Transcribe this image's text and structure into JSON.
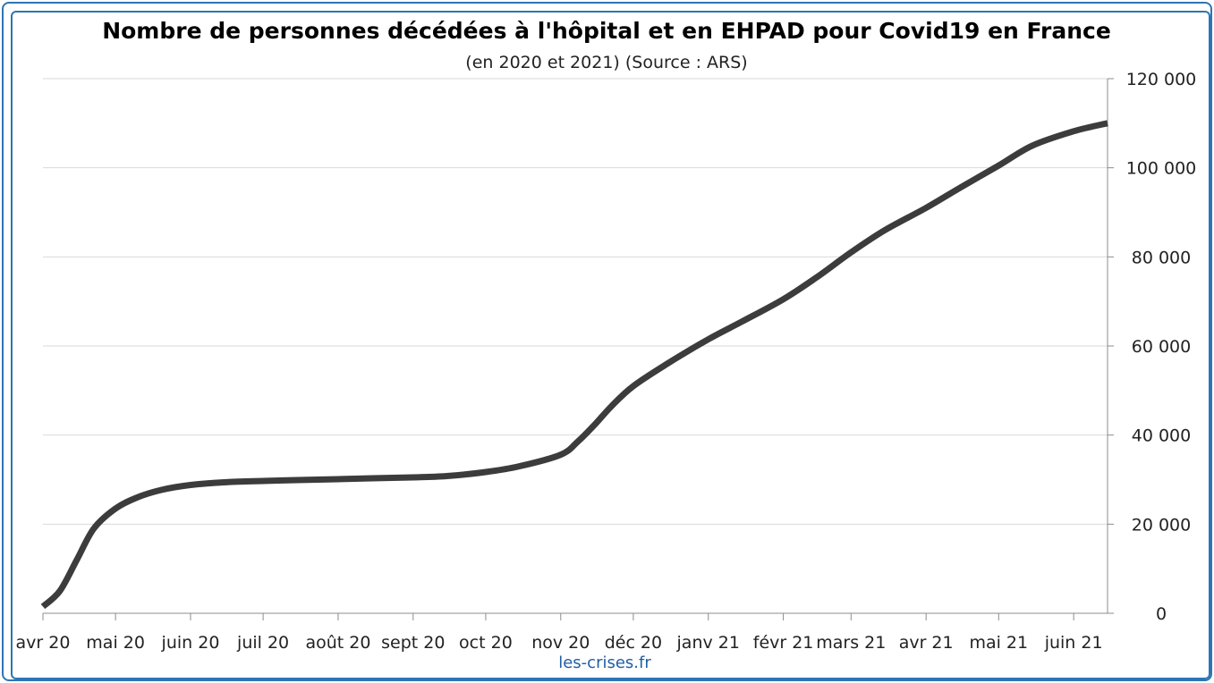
{
  "chart_data": {
    "type": "line",
    "title": "Nombre de personnes décédées à l'hôpital et en EHPAD pour Covid19 en France",
    "subtitle": "(en 2020 et 2021) (Source : ARS)",
    "source_label": "les-crises.fr",
    "x_tick_labels": [
      "avr 20",
      "mai 20",
      "juin 20",
      "juil 20",
      "août 20",
      "sept 20",
      "oct 20",
      "nov 20",
      "déc 20",
      "janv 21",
      "févr 21",
      "mars 21",
      "avr 21",
      "mai 21",
      "juin 21"
    ],
    "y_tick_labels": [
      "0",
      "20 000",
      "40 000",
      "60 000",
      "80 000",
      "100 000",
      "120 000"
    ],
    "ylim": [
      0,
      120000
    ],
    "y_ticks": [
      0,
      20000,
      40000,
      60000,
      80000,
      100000,
      120000
    ],
    "xlim": [
      "2020-04-01",
      "2021-06-15"
    ],
    "x_ticks": [
      "2020-04-01",
      "2020-05-01",
      "2020-06-01",
      "2020-07-01",
      "2020-08-01",
      "2020-09-01",
      "2020-10-01",
      "2020-11-01",
      "2020-12-01",
      "2021-01-01",
      "2021-02-01",
      "2021-03-01",
      "2021-04-01",
      "2021-05-01",
      "2021-06-01"
    ],
    "grid": true,
    "y_axis_side": "right",
    "series_color": "#3c3c3c",
    "series": [
      {
        "x": [
          "2020-04-01",
          "2020-04-08",
          "2020-04-15",
          "2020-04-22",
          "2020-05-01",
          "2020-05-10",
          "2020-05-20",
          "2020-06-01",
          "2020-06-15",
          "2020-07-01",
          "2020-07-15",
          "2020-08-01",
          "2020-08-15",
          "2020-09-01",
          "2020-09-15",
          "2020-10-01",
          "2020-10-15",
          "2020-11-01",
          "2020-11-08",
          "2020-11-15",
          "2020-11-22",
          "2020-12-01",
          "2020-12-15",
          "2021-01-01",
          "2021-01-15",
          "2021-02-01",
          "2021-02-15",
          "2021-03-01",
          "2021-03-15",
          "2021-04-01",
          "2021-04-15",
          "2021-05-01",
          "2021-05-15",
          "2021-06-01",
          "2021-06-15"
        ],
        "y": [
          1500,
          5000,
          12000,
          19000,
          23500,
          26000,
          27700,
          28800,
          29400,
          29700,
          29900,
          30100,
          30300,
          30500,
          30800,
          31700,
          33000,
          35600,
          38500,
          42300,
          46500,
          51000,
          56000,
          61500,
          65500,
          70500,
          75500,
          81000,
          86000,
          91000,
          95500,
          100500,
          105000,
          108200,
          110000
        ]
      }
    ]
  }
}
